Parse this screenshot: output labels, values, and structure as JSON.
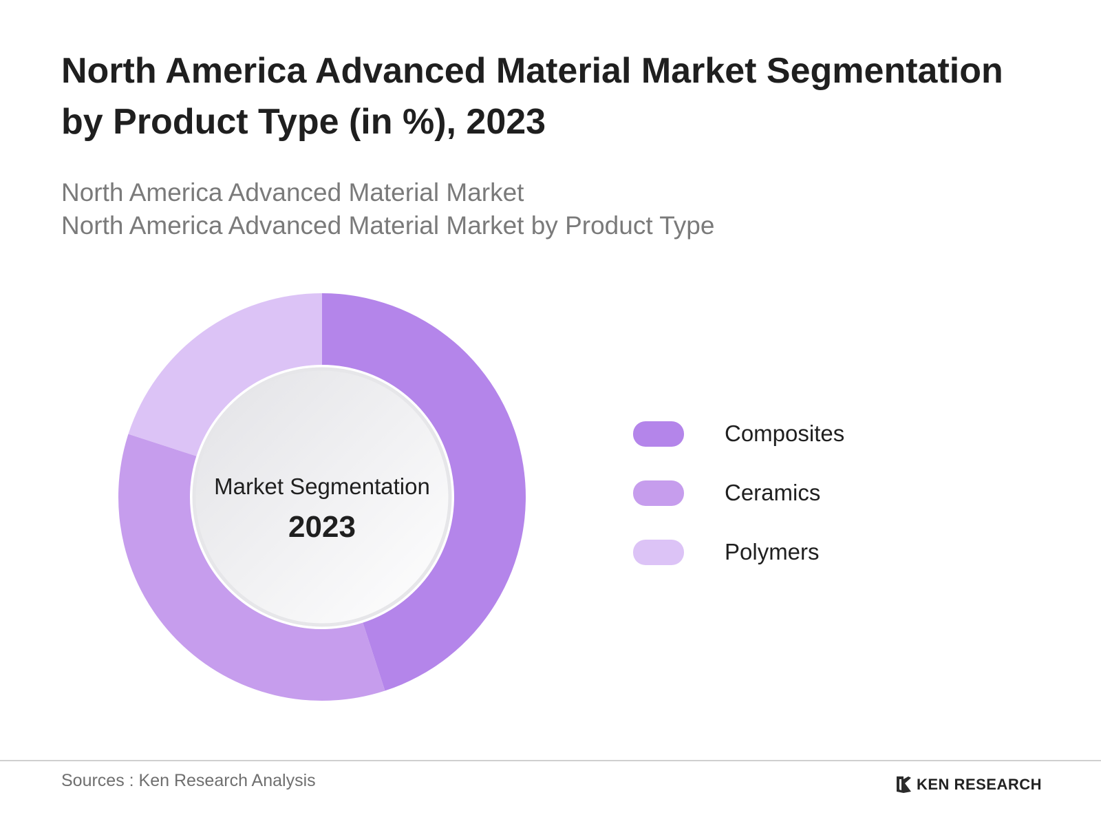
{
  "header": {
    "title": "North America Advanced Material Market Segmentation by Product Type (in %), 2023",
    "subtitle_line1": "North America Advanced Material Market",
    "subtitle_line2": "North America Advanced Material Market by Product Type"
  },
  "center": {
    "label": "Market Segmentation",
    "year": "2023"
  },
  "footer": {
    "source": "Sources : Ken Research Analysis",
    "brand": "KEN RESEARCH"
  },
  "colors": {
    "composites": "#b485ea",
    "ceramics": "#c69ded",
    "polymers": "#dcc3f6"
  },
  "chart_data": {
    "type": "pie",
    "categories": [
      "Composites",
      "Ceramics",
      "Polymers"
    ],
    "values": [
      45,
      35,
      20
    ],
    "colors": [
      "#b485ea",
      "#c69ded",
      "#dcc3f6"
    ],
    "legend_position": "right"
  }
}
